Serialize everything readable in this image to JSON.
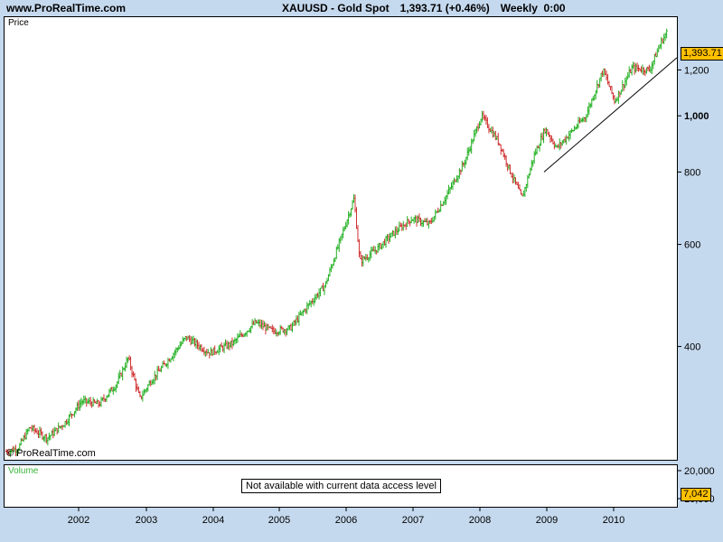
{
  "header": {
    "site": "www.ProRealTime.com",
    "instrument": "XAUUSD - Gold Spot",
    "price": "1,393.71 (+0.46%)",
    "period": "Weekly  0:00"
  },
  "price_panel": {
    "label": "Price",
    "copyright": "© ProRealTime.com",
    "last_tag": "1,393.71"
  },
  "volume_panel": {
    "label": "Volume",
    "notice": "Not available with current data access level",
    "tag": "7,042"
  },
  "colors": {
    "up": "#22b022",
    "down": "#d03030",
    "background": "#c5d9ee",
    "tag": "#ffc000"
  },
  "chart_data": {
    "type": "line",
    "title": "XAUUSD - Gold Spot",
    "scale": "log",
    "ylim": [
      255,
      1480
    ],
    "x_ticks": [
      "2002",
      "2003",
      "2004",
      "2005",
      "2006",
      "2007",
      "2008",
      "2009",
      "2010"
    ],
    "y_ticks": [
      {
        "value": 400,
        "label": "400"
      },
      {
        "value": 600,
        "label": "600"
      },
      {
        "value": 800,
        "label": "800"
      },
      {
        "value": 1000,
        "label": "1,000",
        "bold": true
      },
      {
        "value": 1200,
        "label": "1,200"
      }
    ],
    "volume_ticks": [
      {
        "label": "20,000"
      },
      {
        "label": "10,000"
      }
    ],
    "series": [
      {
        "values_approx": [
          [
            "2001-04",
            262
          ],
          [
            "2001-07",
            267
          ],
          [
            "2001-09",
            290
          ],
          [
            "2001-12",
            278
          ],
          [
            "2002-03",
            295
          ],
          [
            "2002-06",
            322
          ],
          [
            "2002-09",
            318
          ],
          [
            "2002-12",
            345
          ],
          [
            "2003-02",
            382
          ],
          [
            "2003-04",
            325
          ],
          [
            "2003-06",
            350
          ],
          [
            "2003-09",
            380
          ],
          [
            "2003-12",
            415
          ],
          [
            "2004-04",
            390
          ],
          [
            "2004-08",
            405
          ],
          [
            "2004-12",
            440
          ],
          [
            "2005-03",
            425
          ],
          [
            "2005-06",
            430
          ],
          [
            "2005-09",
            470
          ],
          [
            "2005-12",
            510
          ],
          [
            "2006-05",
            720
          ],
          [
            "2006-06",
            560
          ],
          [
            "2006-09",
            590
          ],
          [
            "2006-12",
            630
          ],
          [
            "2007-03",
            665
          ],
          [
            "2007-06",
            650
          ],
          [
            "2007-09",
            730
          ],
          [
            "2007-12",
            830
          ],
          [
            "2008-03",
            1000
          ],
          [
            "2008-06",
            900
          ],
          [
            "2008-08",
            800
          ],
          [
            "2008-10",
            720
          ],
          [
            "2008-12",
            850
          ],
          [
            "2009-02",
            950
          ],
          [
            "2009-04",
            880
          ],
          [
            "2009-09",
            1000
          ],
          [
            "2009-12",
            1200
          ],
          [
            "2010-02",
            1060
          ],
          [
            "2010-05",
            1210
          ],
          [
            "2010-08",
            1200
          ],
          [
            "2010-10",
            1340
          ],
          [
            "2010-11",
            1393.71
          ]
        ]
      }
    ],
    "trendline": [
      [
        "2008-12",
        800
      ],
      [
        "2010-12",
        1260
      ]
    ],
    "last": 1393.71,
    "change_pct": 0.46
  }
}
